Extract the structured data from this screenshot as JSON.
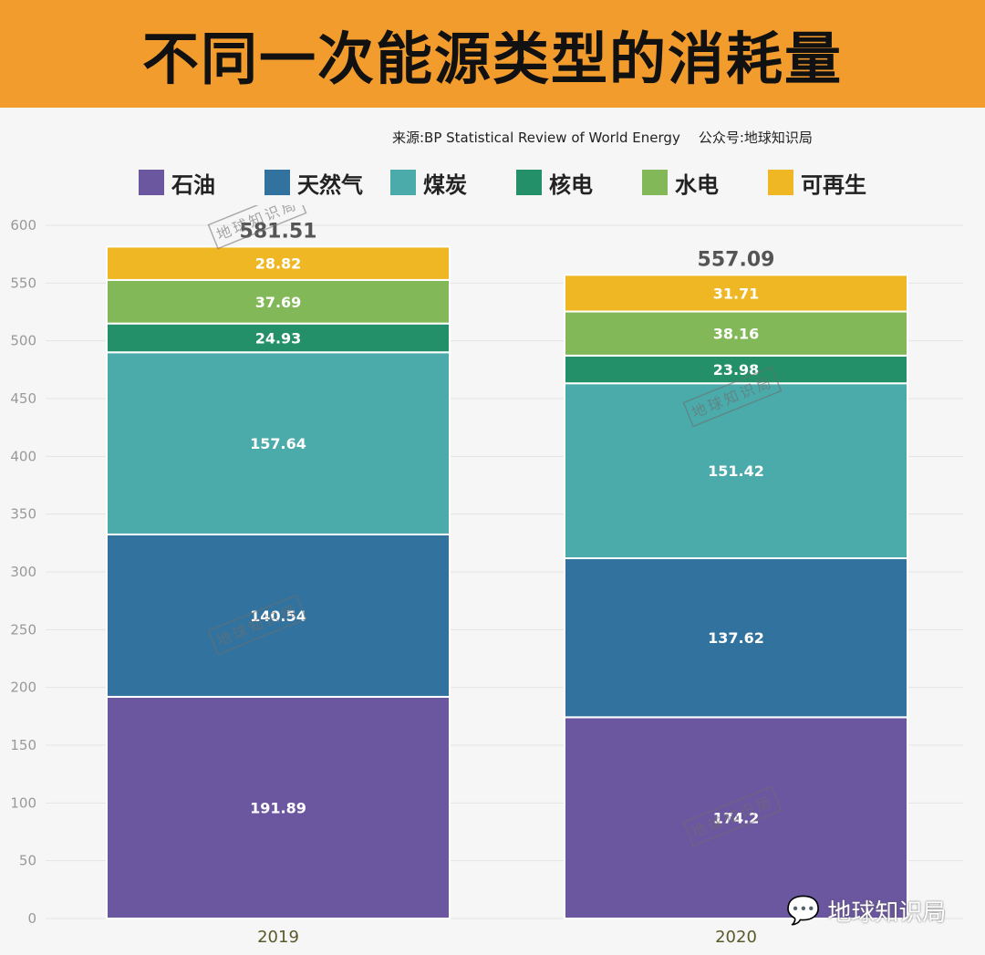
{
  "header": {
    "title": "不同一次能源类型的消耗量"
  },
  "source": {
    "text": "来源:BP Statistical Review of World Energy",
    "account": "公众号:地球知识局"
  },
  "legend": [
    {
      "label": "石油",
      "color": "#6b56a0",
      "icon": "square-swatch"
    },
    {
      "label": "天然气",
      "color": "#31739e",
      "icon": "square-swatch"
    },
    {
      "label": "煤炭",
      "color": "#4aabaa",
      "icon": "square-swatch"
    },
    {
      "label": "核电",
      "color": "#23906a",
      "icon": "square-swatch"
    },
    {
      "label": "水电",
      "color": "#82b858",
      "icon": "square-swatch"
    },
    {
      "label": "可再生",
      "color": "#efb723",
      "icon": "square-swatch"
    }
  ],
  "chart_data": {
    "type": "bar",
    "stacked": true,
    "categories": [
      "2019",
      "2020"
    ],
    "series": [
      {
        "name": "石油",
        "color": "#6b56a0",
        "values": [
          191.89,
          174.2
        ]
      },
      {
        "name": "天然气",
        "color": "#31739e",
        "values": [
          140.54,
          137.62
        ]
      },
      {
        "name": "煤炭",
        "color": "#4aabaa",
        "values": [
          157.64,
          151.42
        ]
      },
      {
        "name": "核电",
        "color": "#23906a",
        "values": [
          24.93,
          23.98
        ]
      },
      {
        "name": "水电",
        "color": "#82b858",
        "values": [
          37.69,
          38.16
        ]
      },
      {
        "name": "可再生",
        "color": "#efb723",
        "values": [
          28.82,
          31.71
        ]
      }
    ],
    "segment_labels": [
      [
        "191.89",
        "174.2"
      ],
      [
        "140.54",
        "137.62"
      ],
      [
        "157.64",
        "151.42"
      ],
      [
        "24.93",
        "23.98"
      ],
      [
        "37.69",
        "38.16"
      ],
      [
        "28.82",
        "31.71"
      ]
    ],
    "totals": [
      "581.51",
      "557.09"
    ],
    "yticks": [
      "0",
      "50",
      "100",
      "150",
      "200",
      "250",
      "300",
      "350",
      "400",
      "450",
      "500",
      "550",
      "600"
    ],
    "ylim": [
      0,
      600
    ],
    "grid": true,
    "legend_position": "top",
    "title": "不同一次能源类型的消耗量",
    "xlabel": "",
    "ylabel": ""
  },
  "watermark": {
    "stamp": "地球知识局",
    "logo_text": "地球知识局",
    "icon": "wechat-icon"
  }
}
